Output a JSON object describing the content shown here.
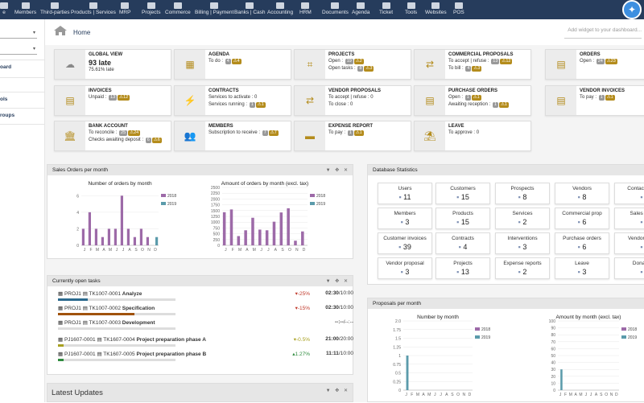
{
  "topbar": {
    "menus": [
      {
        "label": "e",
        "icon": "home-icon"
      },
      {
        "label": "Members",
        "icon": "members-icon"
      },
      {
        "label": "Third-parties",
        "icon": "building-icon"
      },
      {
        "label": "Products | Services",
        "icon": "cube-icon"
      },
      {
        "label": "MRP",
        "icon": "cubes-icon"
      },
      {
        "label": "Projects",
        "icon": "sitemap-icon"
      },
      {
        "label": "Commerce",
        "icon": "suitcase-icon"
      },
      {
        "label": "Billing | Payment",
        "icon": "receipt-icon"
      },
      {
        "label": "Banks | Cash",
        "icon": "bank-icon"
      },
      {
        "label": "Accounting",
        "icon": "calculator-icon"
      },
      {
        "label": "HRM",
        "icon": "person-icon"
      },
      {
        "label": "Documents",
        "icon": "folder-icon"
      },
      {
        "label": "Agenda",
        "icon": "calendar-icon"
      },
      {
        "label": "Ticket",
        "icon": "ticket-icon"
      },
      {
        "label": "Tools",
        "icon": "wrench-icon"
      },
      {
        "label": "Websites",
        "icon": "globe-icon"
      },
      {
        "label": "POS",
        "icon": "cash-register-icon"
      }
    ]
  },
  "sidebar": {
    "items": [
      "oard",
      "ols",
      "roups"
    ]
  },
  "breadcrumb": {
    "home": "Home"
  },
  "widget_select": {
    "placeholder": "Add widget to your dashboard..."
  },
  "boxes": [
    {
      "title": "GLOBAL VIEW",
      "value": "93 late",
      "lines": [
        {
          "text": "75.61% late"
        }
      ]
    },
    {
      "title": "AGENDA",
      "lines": [
        {
          "text": "To do :",
          "gray": "4",
          "warn": "4"
        }
      ]
    },
    {
      "title": "PROJECTS",
      "lines": [
        {
          "text": "Open :",
          "gray": "19",
          "warn": "2"
        },
        {
          "text": "Open tasks :",
          "gray": "8",
          "warn": "3"
        }
      ]
    },
    {
      "title": "COMMERCIAL PROPOSALS",
      "lines": [
        {
          "text": "To accept | refuse :",
          "gray": "13",
          "warn": "12"
        },
        {
          "text": "To bill :",
          "gray": "4",
          "warn": "3"
        }
      ]
    },
    {
      "title": "ORDERS",
      "lines": [
        {
          "text": "Open :",
          "gray": "24",
          "warn": "23"
        }
      ]
    },
    {
      "title": "INVOICES",
      "lines": [
        {
          "text": "Unpaid :",
          "gray": "13",
          "warn": "12"
        }
      ]
    },
    {
      "title": "CONTRACTS",
      "lines": [
        {
          "text": "Services to activate : 0"
        },
        {
          "text": "Services running :",
          "gray": "1",
          "warn": "1"
        }
      ]
    },
    {
      "title": "VENDOR PROPOSALS",
      "lines": [
        {
          "text": "To accept | refuse : 0"
        },
        {
          "text": "To close : 0"
        }
      ]
    },
    {
      "title": "PURCHASE ORDERS",
      "lines": [
        {
          "text": "Open :",
          "gray": "1",
          "warn": "1"
        },
        {
          "text": "Awaiting reception :",
          "gray": "1",
          "warn": "1"
        }
      ]
    },
    {
      "title": "VENDOR INVOICES",
      "lines": [
        {
          "text": "To pay :",
          "gray": "1",
          "warn": "1"
        }
      ]
    },
    {
      "title": "BANK ACCOUNT",
      "lines": [
        {
          "text": "To reconcile :",
          "gray": "25",
          "warn": "24"
        },
        {
          "text": "Checks awaiting deposit :",
          "gray": "6",
          "warn": "6"
        }
      ]
    },
    {
      "title": "MEMBERS",
      "lines": [
        {
          "text": "Subscription to receive :",
          "gray": "7",
          "warn": "7"
        }
      ]
    },
    {
      "title": "EXPENSE REPORT",
      "lines": [
        {
          "text": "To pay :",
          "gray": "1",
          "warn": "1"
        }
      ]
    },
    {
      "title": "LEAVE",
      "lines": [
        {
          "text": "To approve : 0"
        }
      ]
    }
  ],
  "sales_panel": {
    "title": "Sales Orders per month"
  },
  "tasks_panel": {
    "title": "Currently open tasks",
    "rows": [
      {
        "proj": "PROJ1",
        "ref": "TK1007-0001",
        "label": "Analyze",
        "pct": "-25%",
        "pct_color": "#c0392b",
        "time": "02:30/10:00",
        "progress": 0.25,
        "bar_color": "#2b6a8e"
      },
      {
        "proj": "PROJ1",
        "ref": "TK1007-0002",
        "label": "Specification",
        "pct": "-15%",
        "pct_color": "#c0392b",
        "time": "02:30/10:00",
        "progress": 0.65,
        "bar_color": "#a0520c"
      },
      {
        "proj": "PROJ1",
        "ref": "TK1007-0003",
        "label": "Development",
        "pct": "",
        "pct_color": "#333",
        "time": "--:--/--:--",
        "progress": 0,
        "bar_color": "#999"
      },
      {
        "proj": "PJ1607-0001",
        "ref": "TK1607-0004",
        "label": "Project preparation phase A",
        "pct": "-0.5%",
        "pct_color": "#a8a020",
        "time": "21:00/20:00",
        "progress": 0.05,
        "bar_color": "#a8a020"
      },
      {
        "proj": "PJ1607-0001",
        "ref": "TK1607-0005",
        "label": "Project preparation phase B",
        "pct": "1.27%",
        "pct_color": "#2e8b3e",
        "time": "11:11/10:00",
        "progress": 0.05,
        "bar_color": "#2e8b3e"
      }
    ]
  },
  "latest_updates": {
    "title": "Latest Updates"
  },
  "db_panel": {
    "title": "Database Statistics",
    "stats": [
      {
        "label": "Users",
        "value": "11",
        "icon": "user-icon"
      },
      {
        "label": "Customers",
        "value": "15",
        "icon": "building-icon"
      },
      {
        "label": "Prospects",
        "value": "8",
        "icon": "building-icon"
      },
      {
        "label": "Vendors",
        "value": "8",
        "icon": "building-icon"
      },
      {
        "label": "Contacts/Ad",
        "value": "",
        "icon": "contact-icon"
      },
      {
        "label": "Members",
        "value": "3",
        "icon": "user-icon"
      },
      {
        "label": "Products",
        "value": "15",
        "icon": "cube-icon"
      },
      {
        "label": "Services",
        "value": "2",
        "icon": "cube-icon"
      },
      {
        "label": "Commercial prop",
        "value": "6",
        "icon": "file-icon"
      },
      {
        "label": "Sales Ord",
        "value": "",
        "icon": "file-icon"
      },
      {
        "label": "Customer invoices",
        "value": "39",
        "icon": "file-icon"
      },
      {
        "label": "Contracts",
        "value": "4",
        "icon": "file-icon"
      },
      {
        "label": "Interventions",
        "value": "3",
        "icon": "file-icon"
      },
      {
        "label": "Purchase orders",
        "value": "6",
        "icon": "file-icon"
      },
      {
        "label": "Vendors inv",
        "value": "",
        "icon": "file-icon"
      },
      {
        "label": "Vendor proposal",
        "value": "3",
        "icon": "file-icon"
      },
      {
        "label": "Projects",
        "value": "13",
        "icon": "sitemap-icon"
      },
      {
        "label": "Expense reports",
        "value": "2",
        "icon": "file-icon"
      },
      {
        "label": "Leave",
        "value": "3",
        "icon": "file-icon"
      },
      {
        "label": "Donatio",
        "value": "",
        "icon": "file-icon"
      }
    ]
  },
  "proposals_panel": {
    "title": "Proposals per month"
  },
  "colors": {
    "series2018": "#9d6aa8",
    "series2019": "#5b9bab"
  },
  "chart_data": [
    {
      "type": "bar",
      "title": "Number of orders by month",
      "categories": [
        "J",
        "F",
        "M",
        "A",
        "M",
        "J",
        "J",
        "A",
        "S",
        "O",
        "N",
        "D"
      ],
      "series": [
        {
          "name": "2018",
          "values": [
            2,
            4,
            2,
            1,
            2,
            2,
            6,
            2,
            1,
            2,
            1,
            0
          ]
        },
        {
          "name": "2019",
          "values": [
            0,
            0,
            0,
            0,
            0,
            0,
            0,
            0,
            0,
            0,
            0,
            1
          ]
        }
      ],
      "ylim": [
        0,
        7
      ],
      "yticks": [
        0,
        2,
        4,
        6
      ]
    },
    {
      "type": "bar",
      "title": "Amount of orders by month (excl. tax)",
      "categories": [
        "J",
        "F",
        "M",
        "A",
        "M",
        "J",
        "J",
        "A",
        "S",
        "O",
        "N",
        "D"
      ],
      "series": [
        {
          "name": "2018",
          "values": [
            1430,
            1550,
            400,
            650,
            1190,
            680,
            650,
            1020,
            1420,
            1600,
            200,
            600
          ]
        },
        {
          "name": "2019",
          "values": [
            0,
            0,
            0,
            0,
            0,
            0,
            0,
            0,
            0,
            0,
            0,
            0
          ]
        }
      ],
      "ylim": [
        0,
        2500
      ],
      "yticks": [
        0,
        250,
        500,
        750,
        1000,
        1250,
        1500,
        1750,
        2000,
        2250,
        2500
      ]
    },
    {
      "type": "bar",
      "title": "Number by month",
      "categories": [
        "J",
        "F",
        "M",
        "A",
        "M",
        "J",
        "J",
        "A",
        "S",
        "O",
        "N",
        "D"
      ],
      "series": [
        {
          "name": "2018",
          "values": [
            0,
            0,
            0,
            0,
            0,
            0,
            0,
            0,
            0,
            0,
            0,
            0
          ]
        },
        {
          "name": "2019",
          "values": [
            1,
            0,
            0,
            0,
            0,
            0,
            0,
            0,
            0,
            0,
            0,
            0
          ]
        }
      ],
      "ylim": [
        0,
        2.0
      ],
      "yticks": [
        "0",
        "0.25",
        "0.5",
        "0.75",
        "1",
        "1.25",
        "1.5",
        "1.75",
        "2.0"
      ]
    },
    {
      "type": "bar",
      "title": "Amount by month (excl. tax)",
      "categories": [
        "J",
        "F",
        "M",
        "A",
        "M",
        "J",
        "J",
        "A",
        "S",
        "O",
        "N",
        "D"
      ],
      "series": [
        {
          "name": "2018",
          "values": [
            0,
            0,
            0,
            0,
            0,
            0,
            0,
            0,
            0,
            0,
            0,
            0
          ]
        },
        {
          "name": "2019",
          "values": [
            30,
            0,
            0,
            0,
            0,
            0,
            0,
            0,
            0,
            0,
            0,
            0
          ]
        }
      ],
      "ylim": [
        0,
        100
      ],
      "yticks": [
        0,
        10,
        20,
        30,
        40,
        50,
        60,
        70,
        80,
        90,
        100
      ]
    }
  ]
}
